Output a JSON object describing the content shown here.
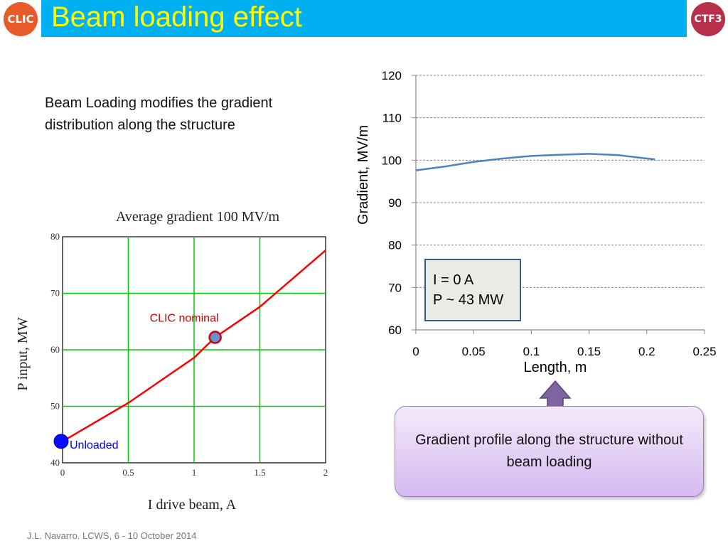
{
  "slide": {
    "title": "Beam loading effect",
    "intro": "Beam Loading modifies the gradient distribution along the structure",
    "logo_left": "CLIC",
    "logo_right": "CTF3",
    "callout_lines": [
      "I = 0 A",
      "P ~ 43 MW"
    ],
    "note": "Gradient profile along the structure without beam loading",
    "footer": "J.L. Navarro. LCWS, 6 - 10 October 2014",
    "colors": {
      "title_bar": "#00b0f0",
      "title_text": "#ffff00",
      "line_blue": "#4f81bd",
      "line_red": "#ff0000",
      "grid_green": "#00cc00",
      "arrow_purple": "#8064a2"
    },
    "icons": [
      "up-arrow-icon"
    ]
  },
  "chart_data": [
    {
      "type": "line",
      "title": "Average gradient 100 MV/m",
      "xlabel": "I drive beam, A",
      "ylabel": "P input, MW",
      "xlim": [
        0,
        2
      ],
      "ylim": [
        40,
        80
      ],
      "xticks": [
        "0",
        "0.5",
        "1",
        "1.5",
        "2"
      ],
      "yticks": [
        "40",
        "50",
        "60",
        "70",
        "80"
      ],
      "grid": true,
      "x": [
        0,
        0.5,
        1.0,
        1.16,
        1.5,
        2.0
      ],
      "y": [
        43.8,
        50.6,
        58.6,
        62.2,
        67.6,
        77.6
      ],
      "annotations": [
        {
          "label": "Unloaded",
          "x": 0,
          "y": 43.8,
          "color": "#0000ff"
        },
        {
          "label": "CLIC nominal",
          "x": 1.16,
          "y": 62.2,
          "color": "#cc0000"
        }
      ]
    },
    {
      "type": "line",
      "title": "",
      "xlabel": "Length, m",
      "ylabel": "Gradient, MV/m",
      "xlim": [
        0,
        0.25
      ],
      "ylim": [
        60,
        120
      ],
      "xticks": [
        "0",
        "0.05",
        "0.1",
        "0.15",
        "0.2",
        "0.25"
      ],
      "yticks": [
        "60",
        "70",
        "80",
        "90",
        "100",
        "110",
        "120"
      ],
      "grid": true,
      "x": [
        0,
        0.025,
        0.05,
        0.075,
        0.1,
        0.125,
        0.15,
        0.175,
        0.2,
        0.207
      ],
      "y": [
        97.6,
        98.5,
        99.6,
        100.4,
        101.0,
        101.3,
        101.5,
        101.2,
        100.4,
        100.2
      ]
    }
  ]
}
